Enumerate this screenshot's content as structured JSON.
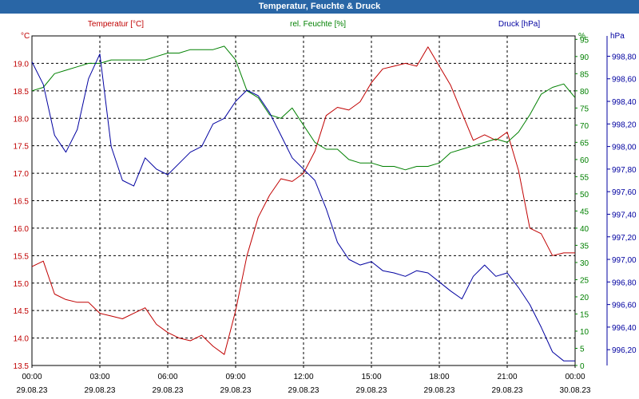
{
  "window": {
    "title": "Temperatur, Feuchte & Druck"
  },
  "legend": {
    "temperature": "Temperatur [°C]",
    "humidity": "rel. Feuchte [%]",
    "pressure": "Druck [hPa]"
  },
  "axes": {
    "left_unit": "°C",
    "right1_unit": "%",
    "right2_unit": "hPa"
  },
  "colors": {
    "temperature": "#c00000",
    "humidity": "#008000",
    "pressure": "#0000a0",
    "title_bar": "#2966a6"
  },
  "chart_data": {
    "type": "line",
    "title": "Temperatur, Feuchte & Druck",
    "x": [
      "00:00",
      "00:30",
      "01:00",
      "01:30",
      "02:00",
      "02:30",
      "03:00",
      "03:30",
      "04:00",
      "04:30",
      "05:00",
      "05:30",
      "06:00",
      "06:30",
      "07:00",
      "07:30",
      "08:00",
      "08:30",
      "09:00",
      "09:30",
      "10:00",
      "10:30",
      "11:00",
      "11:30",
      "12:00",
      "12:30",
      "13:00",
      "13:30",
      "14:00",
      "14:30",
      "15:00",
      "15:30",
      "16:00",
      "16:30",
      "17:00",
      "17:30",
      "18:00",
      "18:30",
      "19:00",
      "19:30",
      "20:00",
      "20:30",
      "21:00",
      "21:30",
      "22:00",
      "22:30",
      "23:00",
      "23:30",
      "24:00"
    ],
    "x_tick_labels": [
      {
        "time": "00:00",
        "date": "29.08.23"
      },
      {
        "time": "03:00",
        "date": "29.08.23"
      },
      {
        "time": "06:00",
        "date": "29.08.23"
      },
      {
        "time": "09:00",
        "date": "29.08.23"
      },
      {
        "time": "12:00",
        "date": "29.08.23"
      },
      {
        "time": "15:00",
        "date": "29.08.23"
      },
      {
        "time": "18:00",
        "date": "29.08.23"
      },
      {
        "time": "21:00",
        "date": "29.08.23"
      },
      {
        "time": "00:00",
        "date": "30.08.23"
      }
    ],
    "series": [
      {
        "name": "Temperatur [°C]",
        "axis": "left",
        "values": [
          15.3,
          15.4,
          14.8,
          14.7,
          14.65,
          14.65,
          14.45,
          14.4,
          14.35,
          14.45,
          14.55,
          14.25,
          14.1,
          14.0,
          13.95,
          14.05,
          13.85,
          13.7,
          14.5,
          15.5,
          16.2,
          16.6,
          16.9,
          16.85,
          17.0,
          17.4,
          18.05,
          18.2,
          18.15,
          18.3,
          18.65,
          18.9,
          18.95,
          19.0,
          18.95,
          19.3,
          18.95,
          18.6,
          18.1,
          17.6,
          17.7,
          17.6,
          17.75,
          17.05,
          16.0,
          15.9,
          15.5,
          15.55,
          15.55
        ]
      },
      {
        "name": "rel. Feuchte [%]",
        "axis": "right1",
        "values": [
          80,
          81,
          85,
          86,
          87,
          88,
          88,
          89,
          89,
          89,
          89,
          90,
          91,
          91,
          92,
          92,
          92,
          93,
          89,
          80,
          78,
          73,
          72,
          75,
          70,
          65,
          63,
          63,
          60,
          59,
          59,
          58,
          58,
          57,
          58,
          58,
          59,
          62,
          63,
          64,
          65,
          66,
          65,
          68,
          73,
          79,
          81,
          82,
          78
        ]
      },
      {
        "name": "Druck [hPa]",
        "axis": "right2",
        "values": [
          998.75,
          998.55,
          998.1,
          997.95,
          998.15,
          998.6,
          998.82,
          998.0,
          997.7,
          997.65,
          997.9,
          997.8,
          997.75,
          997.85,
          997.95,
          998.0,
          998.2,
          998.25,
          998.4,
          998.5,
          998.45,
          998.3,
          998.1,
          997.9,
          997.8,
          997.7,
          997.45,
          997.15,
          997.0,
          996.95,
          996.98,
          996.9,
          996.88,
          996.85,
          996.9,
          996.88,
          996.8,
          996.72,
          996.65,
          996.85,
          996.95,
          996.85,
          996.88,
          996.75,
          996.6,
          996.4,
          996.18,
          996.1,
          996.1
        ]
      }
    ],
    "left_axis": {
      "range": [
        13.5,
        19.5
      ],
      "ticks": [
        "13.5",
        "14.0",
        "14.5",
        "15.0",
        "15.5",
        "16.0",
        "16.5",
        "17.0",
        "17.5",
        "18.0",
        "18.5",
        "19.0"
      ]
    },
    "right1_axis": {
      "range": [
        0,
        96
      ],
      "ticks": [
        "0",
        "5",
        "10",
        "15",
        "20",
        "25",
        "30",
        "35",
        "40",
        "45",
        "50",
        "55",
        "60",
        "65",
        "70",
        "75",
        "80",
        "85",
        "90",
        "95"
      ]
    },
    "right2_axis": {
      "range": [
        996.06,
        998.98
      ],
      "ticks": [
        "996,20",
        "996,40",
        "996,60",
        "996,80",
        "997,00",
        "997,20",
        "997,40",
        "997,60",
        "997,80",
        "998,00",
        "998,20",
        "998,40",
        "998,60",
        "998,80"
      ]
    },
    "grid": true
  }
}
